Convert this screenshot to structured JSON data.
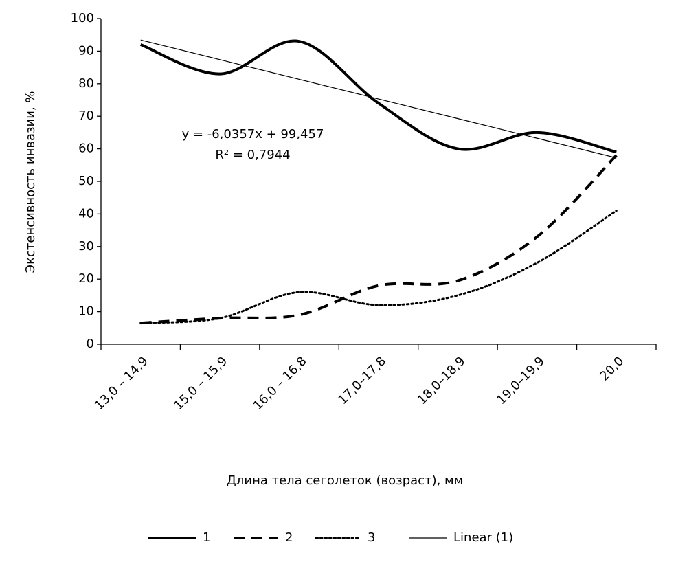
{
  "chart_data": {
    "type": "line",
    "y_label": "Экстенсивность инвазии, %",
    "x_label": "Длина тела сеголеток (возраст), мм",
    "categories": [
      "13,0 – 14,9",
      "15,0 – 15,9",
      "16,0 – 16,8",
      "17,0–17,8",
      "18,0–18,9",
      "19,0–19,9",
      "20,0"
    ],
    "series": [
      {
        "name": "1",
        "color": "#000000",
        "style": "solid",
        "smooth": true,
        "values": [
          92,
          83,
          93,
          74,
          60,
          65,
          59
        ]
      },
      {
        "name": "2",
        "color": "#000000",
        "style": "dashed",
        "smooth": true,
        "values": [
          6.5,
          8,
          9,
          18,
          19.5,
          33,
          58
        ]
      },
      {
        "name": "3",
        "color": "#000000",
        "style": "dotted",
        "smooth": true,
        "values": [
          6.5,
          8,
          16,
          12,
          15,
          25,
          41
        ]
      },
      {
        "name": "Linear (1)",
        "color": "#000000",
        "style": "thin",
        "smooth": false,
        "values": [
          93.42,
          87.39,
          81.35,
          75.31,
          69.28,
          63.24,
          57.21
        ]
      }
    ],
    "annotations": [
      "y = -6,0357x + 99,457",
      "R² = 0,7944"
    ],
    "ylim": [
      0,
      100
    ],
    "yticks": [
      0,
      10,
      20,
      30,
      40,
      50,
      60,
      70,
      80,
      90,
      100
    ],
    "grid": false,
    "legend": "bottom"
  }
}
